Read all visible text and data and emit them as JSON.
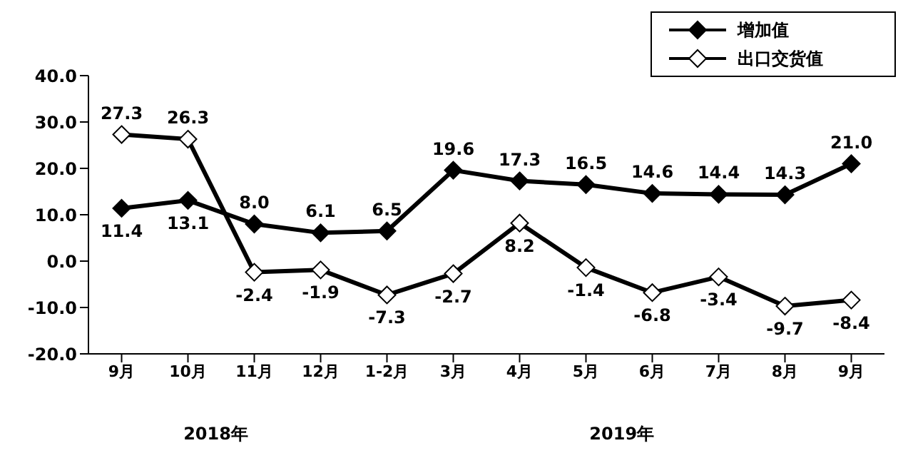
{
  "chart_data": {
    "type": "line",
    "categories": [
      "9月",
      "10月",
      "11月",
      "12月",
      "1-2月",
      "3月",
      "4月",
      "5月",
      "6月",
      "7月",
      "8月",
      "9月"
    ],
    "series": [
      {
        "name": "增加值",
        "color": "#000000",
        "values": [
          11.4,
          13.1,
          8.0,
          6.1,
          6.5,
          19.6,
          17.3,
          16.5,
          14.6,
          14.4,
          14.3,
          21.0
        ],
        "value_labels": [
          "11.4",
          "13.1",
          "8.0",
          "6.1",
          "6.5",
          "19.6",
          "17.3",
          "16.5",
          "14.6",
          "14.4",
          "14.3",
          "21.0"
        ]
      },
      {
        "name": "出口交货值",
        "color": "#000000",
        "values": [
          27.3,
          26.3,
          -2.4,
          -1.9,
          -7.3,
          -2.7,
          8.2,
          -1.4,
          -6.8,
          -3.4,
          -9.7,
          -8.4
        ],
        "value_labels": [
          "27.3",
          "26.3",
          "-2.4",
          "-1.9",
          "-7.3",
          "-2.7",
          "8.2",
          "-1.4",
          "-6.8",
          "-3.4",
          "-9.7",
          "-8.4"
        ]
      }
    ],
    "ylim": [
      -20,
      40
    ],
    "yticks": [
      {
        "value": -20,
        "label": "-20.0"
      },
      {
        "value": -10,
        "label": "-10.0"
      },
      {
        "value": 0,
        "label": "0.0"
      },
      {
        "value": 10,
        "label": "10.0"
      },
      {
        "value": 20,
        "label": "20.0"
      },
      {
        "value": 30,
        "label": "30.0"
      },
      {
        "value": 40,
        "label": "40.0"
      }
    ],
    "grid": false,
    "legend": "top right",
    "marker": "diamond",
    "line_style": "solid",
    "annotations": [
      "2018年",
      "2019年"
    ]
  }
}
